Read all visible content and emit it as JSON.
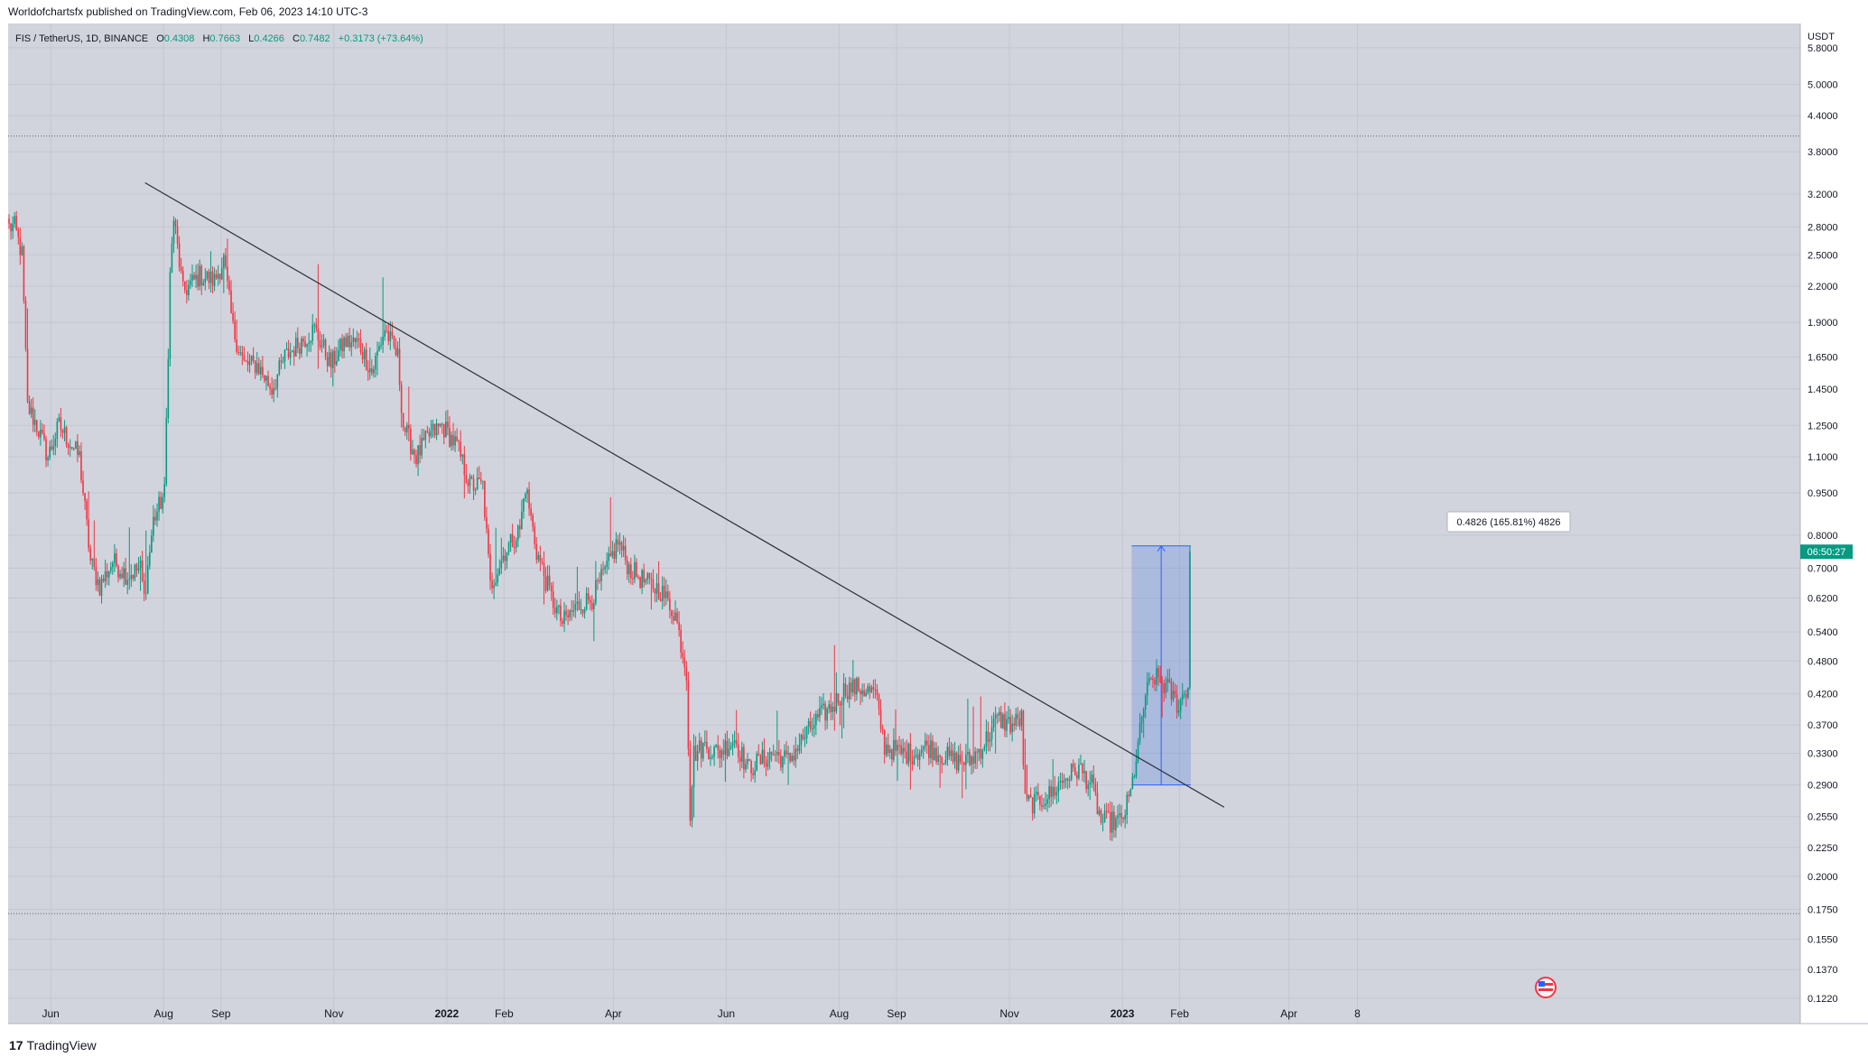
{
  "header": {
    "published_by": "Worldofchartsfx published on TradingView.com, Feb 06, 2023 14:10 UTC-3"
  },
  "legend": {
    "symbol": "FIS / TetherUS, 1D, BINANCE",
    "open_label": "O",
    "open": "0.4308",
    "high_label": "H",
    "high": "0.7663",
    "low_label": "L",
    "low": "0.4266",
    "close_label": "C",
    "close": "0.7482",
    "change": "+0.3173 (+73.64%)"
  },
  "footer": {
    "brand": "TradingView",
    "logo_glyph": "17"
  },
  "colors": {
    "background": "#d1d4dc",
    "grid": "#c3c7d1",
    "up": "#089981",
    "down": "#f23645",
    "trendline": "#2a2e39",
    "box_fill": "#3d6fe0",
    "price_tag": "#089981"
  },
  "chart_data": {
    "type": "candlestick",
    "y_scale": "log",
    "y_unit": "USDT",
    "ylim": [
      0.11,
      6.4
    ],
    "y_ticks": [
      "5.8000",
      "5.0000",
      "4.4000",
      "3.8000",
      "3.2000",
      "2.8000",
      "2.5000",
      "2.2000",
      "1.9000",
      "1.6500",
      "1.4500",
      "1.2500",
      "1.1000",
      "0.9500",
      "0.8000",
      "0.7000",
      "0.6200",
      "0.5400",
      "0.4800",
      "0.4200",
      "0.3700",
      "0.3300",
      "0.2900",
      "0.2550",
      "0.2250",
      "0.2000",
      "0.1750",
      "0.1550",
      "0.1370",
      "0.1220"
    ],
    "x_ticks": [
      "Jun",
      "Aug",
      "Sep",
      "Nov",
      "2022",
      "Feb",
      "Apr",
      "Jun",
      "Aug",
      "Sep",
      "Nov",
      "2023",
      "Feb",
      "Apr",
      "8"
    ],
    "bold_x_ticks": [
      "2022",
      "2023"
    ],
    "grid": true,
    "price_path": [
      [
        "2021-05-12",
        2.8
      ],
      [
        "2021-05-16",
        2.5
      ],
      [
        "2021-05-19",
        1.35
      ],
      [
        "2021-05-24",
        1.25
      ],
      [
        "2021-05-30",
        1.1
      ],
      [
        "2021-06-05",
        1.25
      ],
      [
        "2021-06-12",
        1.15
      ],
      [
        "2021-06-16",
        1.1
      ],
      [
        "2021-06-22",
        0.72
      ],
      [
        "2021-06-27",
        0.65
      ],
      [
        "2021-07-04",
        0.72
      ],
      [
        "2021-07-12",
        0.68
      ],
      [
        "2021-07-19",
        0.7
      ],
      [
        "2021-07-21",
        0.62
      ],
      [
        "2021-07-26",
        0.85
      ],
      [
        "2021-08-01",
        0.95
      ],
      [
        "2021-08-04",
        2.3
      ],
      [
        "2021-08-06",
        2.9
      ],
      [
        "2021-08-11",
        2.15
      ],
      [
        "2021-08-20",
        2.3
      ],
      [
        "2021-08-28",
        2.25
      ],
      [
        "2021-09-02",
        2.45
      ],
      [
        "2021-09-07",
        1.85
      ],
      [
        "2021-09-13",
        1.6
      ],
      [
        "2021-09-20",
        1.6
      ],
      [
        "2021-09-28",
        1.45
      ],
      [
        "2021-10-05",
        1.65
      ],
      [
        "2021-10-13",
        1.75
      ],
      [
        "2021-10-21",
        1.85
      ],
      [
        "2021-10-30",
        1.6
      ],
      [
        "2021-11-06",
        1.75
      ],
      [
        "2021-11-14",
        1.75
      ],
      [
        "2021-11-21",
        1.55
      ],
      [
        "2021-11-28",
        1.85
      ],
      [
        "2021-12-05",
        1.65
      ],
      [
        "2021-12-08",
        1.25
      ],
      [
        "2021-12-15",
        1.1
      ],
      [
        "2021-12-22",
        1.2
      ],
      [
        "2021-12-29",
        1.25
      ],
      [
        "2022-01-06",
        1.15
      ],
      [
        "2022-01-13",
        0.98
      ],
      [
        "2022-01-20",
        0.98
      ],
      [
        "2022-01-24",
        0.65
      ],
      [
        "2022-02-01",
        0.75
      ],
      [
        "2022-02-09",
        0.82
      ],
      [
        "2022-02-12",
        0.98
      ],
      [
        "2022-02-18",
        0.75
      ],
      [
        "2022-02-26",
        0.62
      ],
      [
        "2022-03-04",
        0.56
      ],
      [
        "2022-03-12",
        0.6
      ],
      [
        "2022-03-20",
        0.62
      ],
      [
        "2022-03-28",
        0.7
      ],
      [
        "2022-04-03",
        0.78
      ],
      [
        "2022-04-09",
        0.7
      ],
      [
        "2022-04-18",
        0.66
      ],
      [
        "2022-04-26",
        0.64
      ],
      [
        "2022-05-04",
        0.58
      ],
      [
        "2022-05-10",
        0.46
      ],
      [
        "2022-05-12",
        0.26
      ],
      [
        "2022-05-14",
        0.33
      ],
      [
        "2022-05-20",
        0.34
      ],
      [
        "2022-05-27",
        0.33
      ],
      [
        "2022-06-05",
        0.35
      ],
      [
        "2022-06-12",
        0.31
      ],
      [
        "2022-06-19",
        0.32
      ],
      [
        "2022-06-26",
        0.33
      ],
      [
        "2022-07-04",
        0.32
      ],
      [
        "2022-07-12",
        0.35
      ],
      [
        "2022-07-20",
        0.38
      ],
      [
        "2022-07-28",
        0.4
      ],
      [
        "2022-08-04",
        0.43
      ],
      [
        "2022-08-12",
        0.43
      ],
      [
        "2022-08-20",
        0.42
      ],
      [
        "2022-08-25",
        0.34
      ],
      [
        "2022-09-03",
        0.33
      ],
      [
        "2022-09-10",
        0.33
      ],
      [
        "2022-09-17",
        0.34
      ],
      [
        "2022-09-24",
        0.33
      ],
      [
        "2022-10-02",
        0.32
      ],
      [
        "2022-10-10",
        0.32
      ],
      [
        "2022-10-17",
        0.34
      ],
      [
        "2022-10-25",
        0.38
      ],
      [
        "2022-11-02",
        0.37
      ],
      [
        "2022-11-07",
        0.38
      ],
      [
        "2022-11-09",
        0.27
      ],
      [
        "2022-11-15",
        0.27
      ],
      [
        "2022-11-23",
        0.28
      ],
      [
        "2022-12-01",
        0.3
      ],
      [
        "2022-12-08",
        0.31
      ],
      [
        "2022-12-15",
        0.29
      ],
      [
        "2022-12-20",
        0.25
      ],
      [
        "2022-12-26",
        0.25
      ],
      [
        "2022-12-31",
        0.25
      ],
      [
        "2023-01-05",
        0.28
      ],
      [
        "2023-01-09",
        0.34
      ],
      [
        "2023-01-13",
        0.42
      ],
      [
        "2023-01-18",
        0.45
      ],
      [
        "2023-01-25",
        0.43
      ],
      [
        "2023-01-31",
        0.4
      ],
      [
        "2023-02-04",
        0.43
      ],
      [
        "2023-02-05",
        0.43
      ],
      [
        "2023-02-06",
        0.7482
      ]
    ],
    "annotations": {
      "trendline": {
        "from": [
          "2021-07-22",
          3.35
        ],
        "to": [
          "2023-02-25",
          0.265
        ]
      },
      "resistance_level": 4.05,
      "support_level": 0.172,
      "price_range_box": {
        "from_date": "2023-01-06",
        "to_date": "2023-02-07",
        "low": 0.29,
        "high": 0.7663
      },
      "measure_label": "0.4826 (165.81%) 4826",
      "last_price_tag": "06:50:27"
    }
  }
}
